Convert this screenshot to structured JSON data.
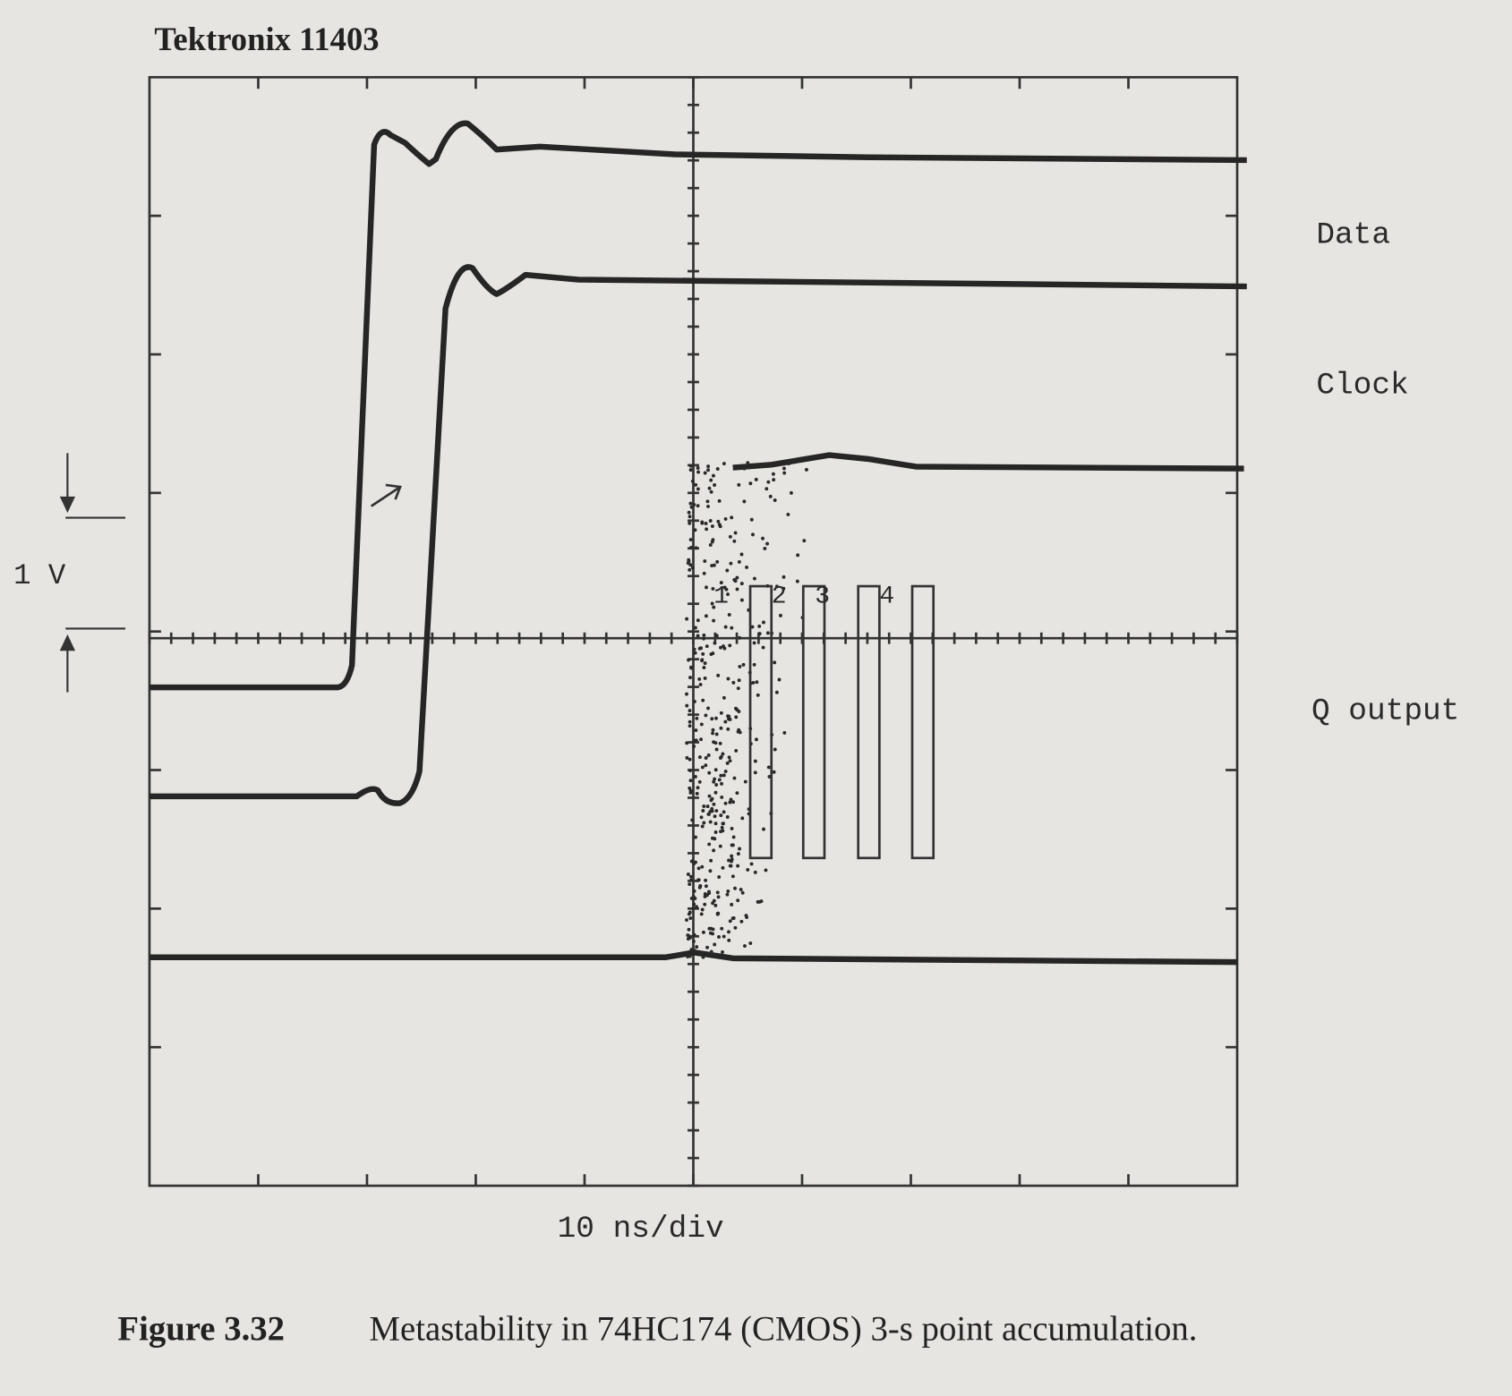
{
  "header": {
    "title": "Tektronix 11403"
  },
  "scale": {
    "voltage": "1 V",
    "time": "10 ns/div"
  },
  "traces": [
    {
      "label": "Data"
    },
    {
      "label": "Clock"
    },
    {
      "label": "Q output"
    }
  ],
  "markers": [
    "1",
    "2",
    "3",
    "4"
  ],
  "caption": {
    "number": "Figure 3.32",
    "text": "Metastability in 74HC174 (CMOS) 3-s point accumulation."
  }
}
